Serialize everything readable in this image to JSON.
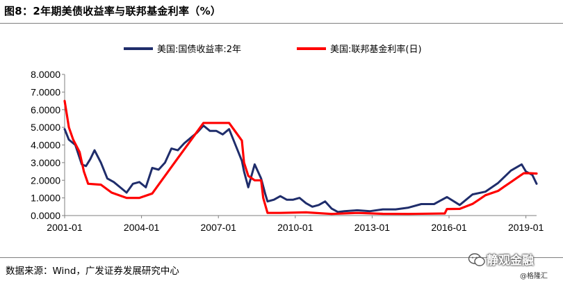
{
  "header": {
    "title": "图8：2年期美债收益率与联邦基金利率（%）"
  },
  "footer": {
    "source": "数据来源：Wind，广发证券发展研究中心"
  },
  "watermark": {
    "main": "静观金融",
    "sub": "@格隆汇"
  },
  "colors": {
    "treasury_2y": "#1f2d6b",
    "fed_funds": "#ff0000",
    "axis": "#7f7f7f"
  },
  "chart_data": {
    "type": "line",
    "title": "图8：2年期美债收益率与联邦基金利率（%）",
    "xlabel": "",
    "ylabel": "",
    "ylim": [
      0,
      8
    ],
    "yticks": [
      "0.0000",
      "1.0000",
      "2.0000",
      "3.0000",
      "4.0000",
      "5.0000",
      "6.0000",
      "7.0000",
      "8.0000"
    ],
    "xticks": [
      "2001-01",
      "2004-01",
      "2007-01",
      "2010-01",
      "2013-01",
      "2016-01",
      "2019-01"
    ],
    "xlim": [
      "2001-01",
      "2019-06"
    ],
    "legend": {
      "placement": "top"
    },
    "grid": false,
    "series": [
      {
        "name": "美国:国债收益率:2年",
        "x": [
          "2001-01",
          "2001-03",
          "2001-06",
          "2001-09",
          "2001-11",
          "2002-01",
          "2002-03",
          "2002-06",
          "2002-09",
          "2002-12",
          "2003-03",
          "2003-06",
          "2003-09",
          "2003-12",
          "2004-03",
          "2004-06",
          "2004-09",
          "2004-12",
          "2005-03",
          "2005-06",
          "2005-09",
          "2005-12",
          "2006-03",
          "2006-06",
          "2006-09",
          "2006-12",
          "2007-03",
          "2007-06",
          "2007-09",
          "2007-12",
          "2008-01",
          "2008-03",
          "2008-06",
          "2008-09",
          "2008-11",
          "2008-12",
          "2009-03",
          "2009-06",
          "2009-09",
          "2009-12",
          "2010-03",
          "2010-06",
          "2010-09",
          "2010-12",
          "2011-03",
          "2011-06",
          "2011-09",
          "2011-12",
          "2012-06",
          "2012-12",
          "2013-06",
          "2013-12",
          "2014-06",
          "2014-12",
          "2015-06",
          "2015-12",
          "2016-06",
          "2016-12",
          "2017-06",
          "2017-12",
          "2018-06",
          "2018-11",
          "2019-01",
          "2019-04",
          "2019-06"
        ],
        "values": [
          4.9,
          4.3,
          4.0,
          2.9,
          2.8,
          3.2,
          3.7,
          3.0,
          2.1,
          1.9,
          1.6,
          1.3,
          1.8,
          1.9,
          1.6,
          2.7,
          2.6,
          3.0,
          3.8,
          3.7,
          4.1,
          4.4,
          4.7,
          5.1,
          4.8,
          4.8,
          4.6,
          4.9,
          4.0,
          3.1,
          2.5,
          1.6,
          2.9,
          2.1,
          1.2,
          0.8,
          0.9,
          1.1,
          0.9,
          0.9,
          1.0,
          0.7,
          0.5,
          0.6,
          0.8,
          0.4,
          0.2,
          0.25,
          0.3,
          0.25,
          0.35,
          0.35,
          0.45,
          0.65,
          0.65,
          1.05,
          0.6,
          1.2,
          1.35,
          1.85,
          2.55,
          2.9,
          2.5,
          2.3,
          1.8
        ]
      },
      {
        "name": "美国:联邦基金利率(日)",
        "x": [
          "2001-01",
          "2001-03",
          "2001-05",
          "2001-08",
          "2001-10",
          "2001-12",
          "2002-06",
          "2002-11",
          "2003-06",
          "2003-12",
          "2004-06",
          "2004-09",
          "2004-12",
          "2005-03",
          "2005-06",
          "2005-09",
          "2005-12",
          "2006-03",
          "2006-06",
          "2006-09",
          "2007-06",
          "2007-09",
          "2007-12",
          "2008-01",
          "2008-03",
          "2008-06",
          "2008-09",
          "2008-10",
          "2008-12",
          "2009-06",
          "2010-06",
          "2011-06",
          "2012-06",
          "2013-06",
          "2014-06",
          "2015-11",
          "2015-12",
          "2016-06",
          "2016-12",
          "2017-03",
          "2017-06",
          "2017-12",
          "2018-03",
          "2018-06",
          "2018-09",
          "2018-12",
          "2019-03",
          "2019-06"
        ],
        "values": [
          6.5,
          5.0,
          4.3,
          3.6,
          2.5,
          1.8,
          1.75,
          1.3,
          1.0,
          1.0,
          1.25,
          1.75,
          2.25,
          2.75,
          3.25,
          3.75,
          4.25,
          4.75,
          5.25,
          5.25,
          5.25,
          4.75,
          4.25,
          3.0,
          2.25,
          2.0,
          2.0,
          1.0,
          0.15,
          0.15,
          0.18,
          0.09,
          0.15,
          0.1,
          0.09,
          0.12,
          0.37,
          0.38,
          0.66,
          0.9,
          1.15,
          1.4,
          1.65,
          1.9,
          2.15,
          2.4,
          2.4,
          2.38
        ]
      }
    ]
  }
}
